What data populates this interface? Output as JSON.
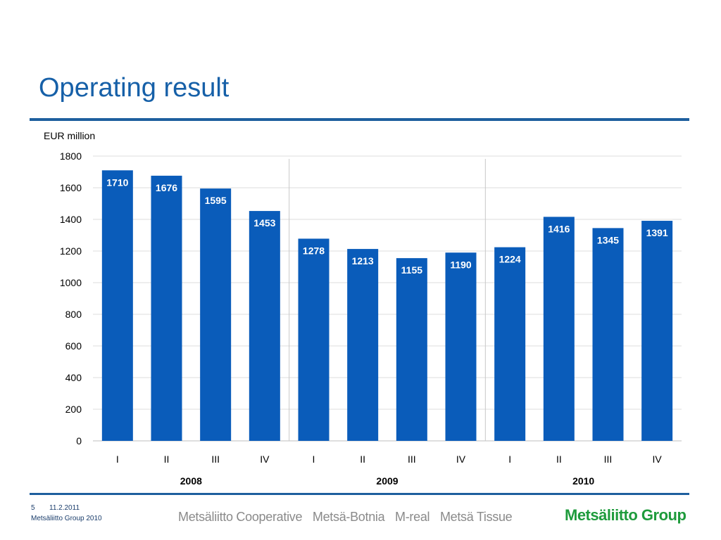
{
  "header": {
    "title": "Operating result"
  },
  "footer": {
    "page_number": "5",
    "date": "11.2.2011",
    "org": "Metsäliitto Group 2010",
    "brands": [
      "Metsäliitto Cooperative",
      "Metsä-Botnia",
      "M-real",
      "Metsä Tissue"
    ],
    "logo_text": "Metsäliitto Group"
  },
  "colors": {
    "bar": "#0a5cba",
    "title": "#1660a8",
    "rule": "#1e5f9e",
    "logo": "#1e9b3c"
  },
  "chart_data": {
    "type": "bar",
    "title": "",
    "ylabel": "EUR million",
    "xlabel": "",
    "ylim": [
      0,
      1800
    ],
    "yticks": [
      0,
      200,
      400,
      600,
      800,
      1000,
      1200,
      1400,
      1600,
      1800
    ],
    "grid": true,
    "categories": [
      "I",
      "II",
      "III",
      "IV",
      "I",
      "II",
      "III",
      "IV",
      "I",
      "II",
      "III",
      "IV"
    ],
    "groups": [
      {
        "label": "2008",
        "count": 4
      },
      {
        "label": "2009",
        "count": 4
      },
      {
        "label": "2010",
        "count": 4
      }
    ],
    "values": [
      1710,
      1676,
      1595,
      1453,
      1278,
      1213,
      1155,
      1190,
      1224,
      1416,
      1345,
      1391
    ],
    "data_labels": [
      "1710",
      "1676",
      "1595",
      "1453",
      "1278",
      "1213",
      "1155",
      "1190",
      "1224",
      "1416",
      "1345",
      "1391"
    ]
  }
}
